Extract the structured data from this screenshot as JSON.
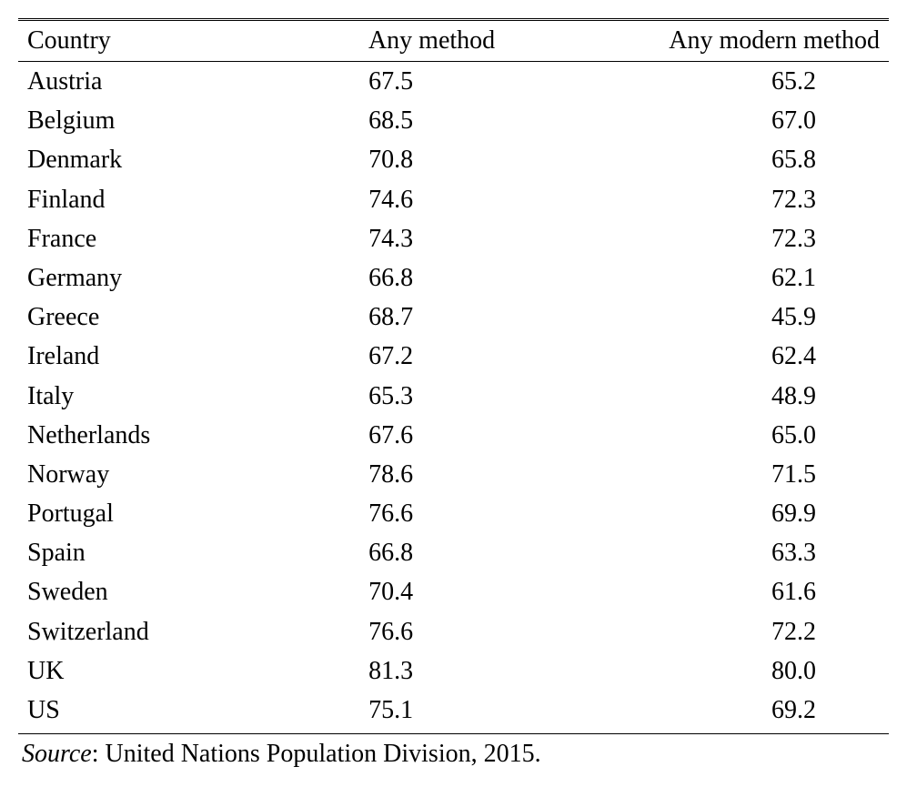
{
  "table": {
    "type": "table",
    "background_color": "#ffffff",
    "text_color": "#000000",
    "font_family": "Georgia, Times New Roman, serif",
    "font_size": 28,
    "rule_top": "3px double #000000",
    "rule_header_bottom": "1px solid #000000",
    "rule_bottom": "1px solid #000000",
    "columns": [
      {
        "key": "country",
        "label": "Country",
        "align": "left",
        "width_pct": 30
      },
      {
        "key": "any_method",
        "label": "Any method",
        "align": "center",
        "width_pct": 35
      },
      {
        "key": "any_modern_method",
        "label": "Any modern method",
        "align": "right",
        "width_pct": 35
      }
    ],
    "rows": [
      {
        "country": "Austria",
        "any_method": "67.5",
        "any_modern_method": "65.2"
      },
      {
        "country": "Belgium",
        "any_method": "68.5",
        "any_modern_method": "67.0"
      },
      {
        "country": "Denmark",
        "any_method": "70.8",
        "any_modern_method": "65.8"
      },
      {
        "country": "Finland",
        "any_method": "74.6",
        "any_modern_method": "72.3"
      },
      {
        "country": "France",
        "any_method": "74.3",
        "any_modern_method": "72.3"
      },
      {
        "country": "Germany",
        "any_method": "66.8",
        "any_modern_method": "62.1"
      },
      {
        "country": "Greece",
        "any_method": "68.7",
        "any_modern_method": "45.9"
      },
      {
        "country": "Ireland",
        "any_method": "67.2",
        "any_modern_method": "62.4"
      },
      {
        "country": "Italy",
        "any_method": "65.3",
        "any_modern_method": "48.9"
      },
      {
        "country": "Netherlands",
        "any_method": "67.6",
        "any_modern_method": "65.0"
      },
      {
        "country": "Norway",
        "any_method": "78.6",
        "any_modern_method": "71.5"
      },
      {
        "country": "Portugal",
        "any_method": "76.6",
        "any_modern_method": "69.9"
      },
      {
        "country": "Spain",
        "any_method": "66.8",
        "any_modern_method": "63.3"
      },
      {
        "country": "Sweden",
        "any_method": "70.4",
        "any_modern_method": "61.6"
      },
      {
        "country": "Switzerland",
        "any_method": "76.6",
        "any_modern_method": "72.2"
      },
      {
        "country": "UK",
        "any_method": "81.3",
        "any_modern_method": "80.0"
      },
      {
        "country": "US",
        "any_method": "75.1",
        "any_modern_method": "69.2"
      }
    ],
    "source_label": "Source",
    "source_text": ": United Nations Population Division, 2015."
  }
}
